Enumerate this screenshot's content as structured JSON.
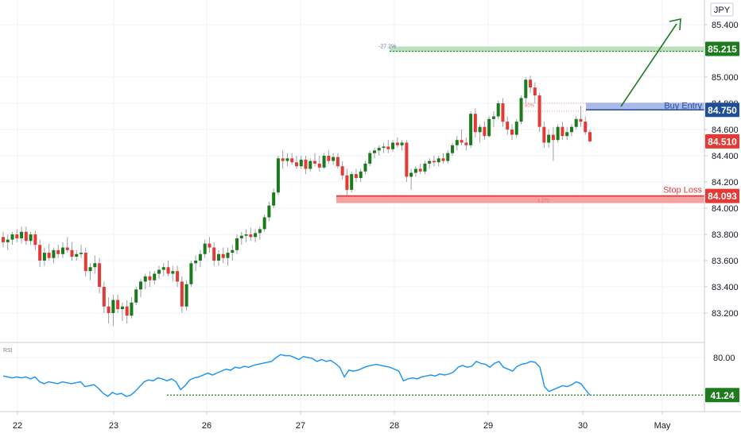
{
  "chart_data": [
    {
      "type": "candlestick",
      "title": "",
      "currency_label": "JPY",
      "x_ticks": [
        "22",
        "23",
        "26",
        "27",
        "28",
        "29",
        "30",
        "May"
      ],
      "y_ticks": [
        "85.400",
        "85.000",
        "84.800",
        "84.600",
        "84.400",
        "84.200",
        "84.000",
        "83.800",
        "83.600",
        "83.400",
        "83.200"
      ],
      "ylim": [
        83.0,
        85.5
      ],
      "price_badges": [
        {
          "label": "85.215",
          "value": 85.215,
          "color": "#1e7b1e"
        },
        {
          "label": "84.750",
          "value": 84.75,
          "color": "#1f4e99"
        },
        {
          "label": "84.510",
          "value": 84.51,
          "color": "#e53935"
        },
        {
          "label": "84.093",
          "value": 84.093,
          "color": "#e53935"
        }
      ],
      "zones": [
        {
          "label": "Buy Entry",
          "value": 84.75,
          "color": "#1f4e99"
        },
        {
          "label": "Stop Loss",
          "value": 84.093,
          "color": "#e53935"
        }
      ],
      "annotations": [
        "-27.2%",
        "80%",
        "1.272"
      ],
      "candles_ohlc": [
        [
          83.78,
          83.82,
          83.7,
          83.74
        ],
        [
          83.74,
          83.8,
          83.68,
          83.76
        ],
        [
          83.76,
          83.82,
          83.72,
          83.8
        ],
        [
          83.8,
          83.84,
          83.74,
          83.77
        ],
        [
          83.77,
          83.86,
          83.73,
          83.82
        ],
        [
          83.82,
          83.86,
          83.72,
          83.75
        ],
        [
          83.75,
          83.82,
          83.72,
          83.8
        ],
        [
          83.8,
          83.83,
          83.68,
          83.72
        ],
        [
          83.72,
          83.76,
          83.55,
          83.6
        ],
        [
          83.6,
          83.7,
          83.56,
          83.66
        ],
        [
          83.66,
          83.73,
          83.6,
          83.62
        ],
        [
          83.62,
          83.7,
          83.58,
          83.68
        ],
        [
          83.68,
          83.72,
          83.62,
          83.65
        ],
        [
          83.65,
          83.74,
          83.62,
          83.7
        ],
        [
          83.7,
          83.78,
          83.66,
          83.68
        ],
        [
          83.68,
          83.74,
          83.6,
          83.63
        ],
        [
          83.63,
          83.68,
          83.6,
          83.65
        ],
        [
          83.65,
          83.72,
          83.62,
          83.66
        ],
        [
          83.66,
          83.7,
          83.48,
          83.52
        ],
        [
          83.52,
          83.58,
          83.45,
          83.55
        ],
        [
          83.55,
          83.64,
          83.5,
          83.58
        ],
        [
          83.58,
          83.62,
          83.35,
          83.4
        ],
        [
          83.4,
          83.44,
          83.2,
          83.25
        ],
        [
          83.25,
          83.32,
          83.12,
          83.2
        ],
        [
          83.2,
          83.34,
          83.1,
          83.3
        ],
        [
          83.3,
          83.34,
          83.2,
          83.23
        ],
        [
          83.23,
          83.28,
          83.14,
          83.25
        ],
        [
          83.25,
          83.3,
          83.12,
          83.18
        ],
        [
          83.18,
          83.32,
          83.16,
          83.28
        ],
        [
          83.28,
          83.4,
          83.26,
          83.38
        ],
        [
          83.38,
          83.46,
          83.32,
          83.44
        ],
        [
          83.44,
          83.5,
          83.38,
          83.48
        ],
        [
          83.48,
          83.52,
          83.4,
          83.45
        ],
        [
          83.45,
          83.52,
          83.42,
          83.5
        ],
        [
          83.5,
          83.56,
          83.46,
          83.53
        ],
        [
          83.53,
          83.58,
          83.48,
          83.55
        ],
        [
          83.55,
          83.6,
          83.48,
          83.5
        ],
        [
          83.5,
          83.56,
          83.44,
          83.52
        ],
        [
          83.52,
          83.56,
          83.4,
          83.44
        ],
        [
          83.44,
          83.48,
          83.2,
          83.25
        ],
        [
          83.25,
          83.45,
          83.22,
          83.42
        ],
        [
          83.42,
          83.6,
          83.4,
          83.58
        ],
        [
          83.58,
          83.64,
          83.52,
          83.6
        ],
        [
          83.6,
          83.68,
          83.55,
          83.65
        ],
        [
          83.65,
          83.76,
          83.62,
          83.73
        ],
        [
          83.73,
          83.78,
          83.66,
          83.7
        ],
        [
          83.7,
          83.74,
          83.56,
          83.6
        ],
        [
          83.6,
          83.68,
          83.56,
          83.65
        ],
        [
          83.65,
          83.7,
          83.58,
          83.62
        ],
        [
          83.62,
          83.7,
          83.56,
          83.66
        ],
        [
          83.66,
          83.72,
          83.6,
          83.68
        ],
        [
          83.68,
          83.8,
          83.65,
          83.77
        ],
        [
          83.77,
          83.82,
          83.72,
          83.79
        ],
        [
          83.79,
          83.84,
          83.74,
          83.8
        ],
        [
          83.8,
          83.85,
          83.75,
          83.78
        ],
        [
          83.78,
          83.84,
          83.74,
          83.81
        ],
        [
          83.81,
          83.86,
          83.76,
          83.84
        ],
        [
          83.84,
          83.95,
          83.82,
          83.93
        ],
        [
          83.93,
          84.05,
          83.9,
          84.02
        ],
        [
          84.02,
          84.15,
          84.0,
          84.12
        ],
        [
          84.12,
          84.4,
          84.1,
          84.38
        ],
        [
          84.38,
          84.44,
          84.3,
          84.36
        ],
        [
          84.36,
          84.42,
          84.32,
          84.38
        ],
        [
          84.38,
          84.42,
          84.33,
          84.35
        ],
        [
          84.35,
          84.4,
          84.3,
          84.32
        ],
        [
          84.32,
          84.4,
          84.3,
          84.37
        ],
        [
          84.37,
          84.4,
          84.26,
          84.3
        ],
        [
          84.3,
          84.38,
          84.28,
          84.36
        ],
        [
          84.36,
          84.42,
          84.32,
          84.34
        ],
        [
          84.34,
          84.4,
          84.28,
          84.31
        ],
        [
          84.31,
          84.42,
          84.3,
          84.4
        ],
        [
          84.4,
          84.44,
          84.34,
          84.36
        ],
        [
          84.36,
          84.42,
          84.33,
          84.39
        ],
        [
          84.39,
          84.42,
          84.3,
          84.32
        ],
        [
          84.32,
          84.36,
          84.22,
          84.25
        ],
        [
          84.25,
          84.3,
          84.1,
          84.14
        ],
        [
          84.14,
          84.28,
          84.12,
          84.26
        ],
        [
          84.26,
          84.3,
          84.2,
          84.23
        ],
        [
          84.23,
          84.3,
          84.2,
          84.28
        ],
        [
          84.28,
          84.36,
          84.26,
          84.34
        ],
        [
          84.34,
          84.44,
          84.32,
          84.42
        ],
        [
          84.42,
          84.46,
          84.38,
          84.44
        ],
        [
          84.44,
          84.48,
          84.4,
          84.46
        ],
        [
          84.46,
          84.5,
          84.42,
          84.47
        ],
        [
          84.47,
          84.52,
          84.42,
          84.45
        ],
        [
          84.45,
          84.52,
          84.43,
          84.5
        ],
        [
          84.5,
          84.54,
          84.46,
          84.48
        ],
        [
          84.48,
          84.52,
          84.44,
          84.5
        ],
        [
          84.5,
          84.52,
          84.2,
          84.24
        ],
        [
          84.24,
          84.3,
          84.14,
          84.27
        ],
        [
          84.27,
          84.32,
          84.24,
          84.3
        ],
        [
          84.3,
          84.34,
          84.26,
          84.28
        ],
        [
          84.28,
          84.36,
          84.26,
          84.34
        ],
        [
          84.34,
          84.38,
          84.3,
          84.36
        ],
        [
          84.36,
          84.4,
          84.32,
          84.35
        ],
        [
          84.35,
          84.4,
          84.32,
          84.38
        ],
        [
          84.38,
          84.42,
          84.34,
          84.36
        ],
        [
          84.36,
          84.44,
          84.34,
          84.42
        ],
        [
          84.42,
          84.5,
          84.4,
          84.48
        ],
        [
          84.48,
          84.55,
          84.44,
          84.52
        ],
        [
          84.52,
          84.6,
          84.48,
          84.5
        ],
        [
          84.5,
          84.54,
          84.44,
          84.48
        ],
        [
          84.48,
          84.74,
          84.46,
          84.72
        ],
        [
          84.72,
          84.76,
          84.54,
          84.58
        ],
        [
          84.58,
          84.64,
          84.5,
          84.62
        ],
        [
          84.62,
          84.66,
          84.52,
          84.55
        ],
        [
          84.55,
          84.7,
          84.54,
          84.68
        ],
        [
          84.68,
          84.74,
          84.62,
          84.7
        ],
        [
          84.7,
          84.82,
          84.68,
          84.8
        ],
        [
          84.8,
          84.84,
          84.62,
          84.66
        ],
        [
          84.66,
          84.7,
          84.56,
          84.6
        ],
        [
          84.6,
          84.64,
          84.52,
          84.56
        ],
        [
          84.56,
          84.68,
          84.54,
          84.66
        ],
        [
          84.66,
          84.86,
          84.64,
          84.84
        ],
        [
          84.84,
          85.0,
          84.8,
          84.98
        ],
        [
          84.98,
          85.01,
          84.88,
          84.92
        ],
        [
          84.92,
          84.96,
          84.8,
          84.86
        ],
        [
          84.86,
          84.88,
          84.58,
          84.62
        ],
        [
          84.62,
          84.66,
          84.46,
          84.5
        ],
        [
          84.5,
          84.6,
          84.46,
          84.56
        ],
        [
          84.56,
          84.62,
          84.36,
          84.52
        ],
        [
          84.52,
          84.64,
          84.5,
          84.62
        ],
        [
          84.62,
          84.66,
          84.52,
          84.55
        ],
        [
          84.55,
          84.62,
          84.52,
          84.58
        ],
        [
          84.58,
          84.64,
          84.55,
          84.62
        ],
        [
          84.62,
          84.7,
          84.6,
          84.68
        ],
        [
          84.68,
          84.78,
          84.62,
          84.66
        ],
        [
          84.66,
          84.7,
          84.56,
          84.58
        ],
        [
          84.58,
          84.6,
          84.5,
          84.51
        ]
      ]
    },
    {
      "type": "line",
      "title": "RSI",
      "series": [
        {
          "values": [
            61,
            60,
            59,
            60,
            59,
            60,
            58,
            60,
            55,
            53,
            55,
            54,
            53,
            55,
            54,
            53,
            54,
            55,
            50,
            51,
            52,
            48,
            43,
            40,
            44,
            42,
            43,
            40,
            41,
            45,
            50,
            55,
            57,
            56,
            59,
            58,
            56,
            58,
            55,
            47,
            51,
            57,
            59,
            60,
            62,
            64,
            62,
            64,
            66,
            68,
            67,
            70,
            69,
            71,
            70,
            72,
            73,
            74,
            75,
            76,
            80,
            83,
            82,
            82,
            80,
            78,
            81,
            80,
            79,
            76,
            78,
            76,
            77,
            74,
            70,
            60,
            67,
            66,
            67,
            69,
            71,
            72,
            73,
            72,
            71,
            70,
            68,
            66,
            56,
            58,
            59,
            58,
            60,
            61,
            62,
            61,
            63,
            62,
            63,
            65,
            70,
            72,
            70,
            71,
            76,
            74,
            73,
            70,
            74,
            76,
            70,
            68,
            66,
            71,
            73,
            74,
            76,
            75,
            70,
            50,
            45,
            47,
            49,
            51,
            50,
            52,
            55,
            53,
            47,
            41.24
          ]
        }
      ],
      "y_ticks": [
        "80.00"
      ],
      "ylim": [
        33,
        88
      ],
      "current_label": "41.24",
      "current_value": 41.24
    }
  ]
}
